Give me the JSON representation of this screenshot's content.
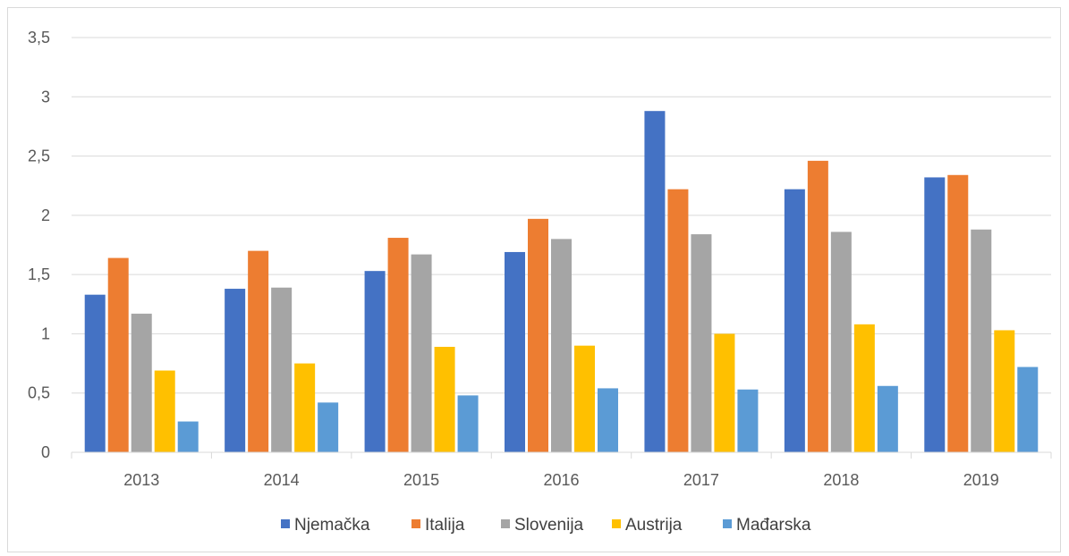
{
  "chart_data": {
    "type": "bar",
    "title": "",
    "xlabel": "",
    "ylabel": "",
    "categories": [
      "2013",
      "2014",
      "2015",
      "2016",
      "2017",
      "2018",
      "2019"
    ],
    "series": [
      {
        "name": "Njemačka",
        "color": "#4472C4",
        "values": [
          1.33,
          1.38,
          1.53,
          1.69,
          2.88,
          2.22,
          2.32
        ]
      },
      {
        "name": "Italija",
        "color": "#ED7D31",
        "values": [
          1.64,
          1.7,
          1.81,
          1.97,
          2.22,
          2.46,
          2.34
        ]
      },
      {
        "name": "Slovenija",
        "color": "#A5A5A5",
        "values": [
          1.17,
          1.39,
          1.67,
          1.8,
          1.84,
          1.86,
          1.88
        ]
      },
      {
        "name": "Austrija",
        "color": "#FFC000",
        "values": [
          0.69,
          0.75,
          0.89,
          0.9,
          1.0,
          1.08,
          1.03
        ]
      },
      {
        "name": "Mađarska",
        "color": "#5B9BD5",
        "values": [
          0.26,
          0.42,
          0.48,
          0.54,
          0.53,
          0.56,
          0.72
        ]
      }
    ],
    "ylim": [
      0,
      3.5
    ],
    "yticks": [
      0,
      0.5,
      1,
      1.5,
      2,
      2.5,
      3,
      3.5
    ],
    "ytick_labels": [
      "0",
      "0,5",
      "1",
      "1,5",
      "2",
      "2,5",
      "3",
      "3,5"
    ],
    "grid": true,
    "legend_position": "bottom"
  }
}
